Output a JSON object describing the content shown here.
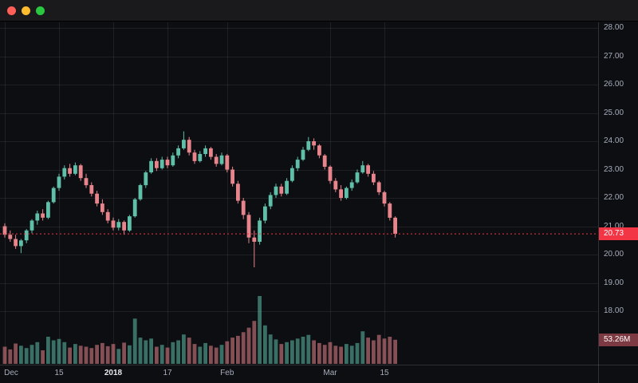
{
  "window": {
    "controls": [
      {
        "name": "close",
        "color": "#ff5f57"
      },
      {
        "name": "minimize",
        "color": "#febc2e"
      },
      {
        "name": "maximize",
        "color": "#2ac840"
      }
    ]
  },
  "chart_data": {
    "type": "candlestick",
    "title": "",
    "y_ticks": [
      "28.00",
      "27.00",
      "26.00",
      "25.00",
      "24.00",
      "23.00",
      "22.00",
      "21.00",
      "20.00",
      "19.00",
      "18.00"
    ],
    "y_axis_top_price": 28.0,
    "y_axis_bottom_price": 18.0,
    "x_ticks": [
      {
        "label": "Dec",
        "index": 0
      },
      {
        "label": "15",
        "index": 10
      },
      {
        "label": "2018",
        "index": 20,
        "emphasis": true
      },
      {
        "label": "17",
        "index": 30
      },
      {
        "label": "Feb",
        "index": 41
      },
      {
        "label": "Mar",
        "index": 60
      },
      {
        "label": "15",
        "index": 70
      }
    ],
    "candles": [
      [
        21.0,
        21.1,
        20.6,
        20.7
      ],
      [
        20.7,
        20.85,
        20.45,
        20.55
      ],
      [
        20.55,
        20.7,
        20.2,
        20.3
      ],
      [
        20.3,
        20.55,
        20.05,
        20.5
      ],
      [
        20.5,
        20.9,
        20.4,
        20.85
      ],
      [
        20.85,
        21.25,
        20.75,
        21.2
      ],
      [
        21.2,
        21.55,
        21.05,
        21.45
      ],
      [
        21.45,
        21.6,
        21.2,
        21.3
      ],
      [
        21.3,
        21.9,
        21.25,
        21.85
      ],
      [
        21.85,
        22.4,
        21.8,
        22.35
      ],
      [
        22.35,
        22.85,
        22.25,
        22.75
      ],
      [
        22.75,
        23.15,
        22.65,
        23.05
      ],
      [
        23.05,
        23.2,
        22.75,
        22.85
      ],
      [
        22.85,
        23.25,
        22.8,
        23.15
      ],
      [
        23.15,
        23.2,
        22.6,
        22.7
      ],
      [
        22.7,
        22.85,
        22.35,
        22.45
      ],
      [
        22.45,
        22.55,
        22.05,
        22.15
      ],
      [
        22.15,
        22.25,
        21.7,
        21.8
      ],
      [
        21.8,
        21.95,
        21.4,
        21.5
      ],
      [
        21.5,
        21.6,
        21.1,
        21.2
      ],
      [
        21.2,
        21.3,
        20.85,
        20.95
      ],
      [
        20.95,
        21.25,
        20.85,
        21.15
      ],
      [
        21.15,
        21.2,
        20.7,
        20.85
      ],
      [
        20.85,
        21.4,
        20.8,
        21.35
      ],
      [
        21.35,
        22.0,
        21.3,
        21.95
      ],
      [
        21.95,
        22.5,
        21.9,
        22.45
      ],
      [
        22.45,
        22.95,
        22.35,
        22.9
      ],
      [
        22.9,
        23.4,
        22.85,
        23.3
      ],
      [
        23.3,
        23.4,
        22.95,
        23.05
      ],
      [
        23.05,
        23.45,
        23.0,
        23.35
      ],
      [
        23.35,
        23.45,
        23.05,
        23.15
      ],
      [
        23.15,
        23.6,
        23.1,
        23.5
      ],
      [
        23.5,
        23.85,
        23.4,
        23.75
      ],
      [
        23.75,
        24.35,
        23.7,
        24.05
      ],
      [
        24.05,
        24.15,
        23.5,
        23.6
      ],
      [
        23.6,
        23.7,
        23.2,
        23.3
      ],
      [
        23.3,
        23.65,
        23.25,
        23.55
      ],
      [
        23.55,
        23.85,
        23.45,
        23.75
      ],
      [
        23.75,
        23.8,
        23.35,
        23.45
      ],
      [
        23.45,
        23.55,
        23.1,
        23.2
      ],
      [
        23.2,
        23.6,
        23.15,
        23.5
      ],
      [
        23.5,
        23.55,
        22.9,
        23.0
      ],
      [
        23.0,
        23.1,
        22.4,
        22.5
      ],
      [
        22.5,
        22.6,
        21.8,
        21.9
      ],
      [
        21.9,
        22.0,
        21.25,
        21.4
      ],
      [
        21.4,
        21.5,
        20.4,
        20.6
      ],
      [
        20.6,
        20.85,
        19.55,
        20.45
      ],
      [
        20.45,
        21.3,
        20.35,
        21.2
      ],
      [
        21.2,
        21.8,
        21.1,
        21.7
      ],
      [
        21.7,
        22.2,
        21.6,
        22.1
      ],
      [
        22.1,
        22.5,
        22.0,
        22.4
      ],
      [
        22.4,
        22.5,
        22.05,
        22.15
      ],
      [
        22.15,
        22.7,
        22.1,
        22.6
      ],
      [
        22.6,
        23.15,
        22.55,
        23.05
      ],
      [
        23.05,
        23.45,
        22.95,
        23.35
      ],
      [
        23.35,
        23.8,
        23.3,
        23.7
      ],
      [
        23.7,
        24.15,
        23.65,
        24.0
      ],
      [
        24.0,
        24.1,
        23.7,
        23.85
      ],
      [
        23.85,
        23.9,
        23.4,
        23.5
      ],
      [
        23.5,
        23.55,
        23.0,
        23.1
      ],
      [
        23.1,
        23.15,
        22.5,
        22.6
      ],
      [
        22.6,
        22.7,
        22.2,
        22.3
      ],
      [
        22.3,
        22.45,
        21.9,
        22.0
      ],
      [
        22.0,
        22.4,
        21.95,
        22.35
      ],
      [
        22.35,
        22.65,
        22.25,
        22.55
      ],
      [
        22.55,
        23.0,
        22.5,
        22.9
      ],
      [
        22.9,
        23.3,
        22.85,
        23.15
      ],
      [
        23.15,
        23.2,
        22.75,
        22.85
      ],
      [
        22.85,
        22.95,
        22.45,
        22.55
      ],
      [
        22.55,
        22.6,
        22.1,
        22.2
      ],
      [
        22.2,
        22.25,
        21.7,
        21.8
      ],
      [
        21.8,
        21.85,
        21.2,
        21.3
      ],
      [
        21.3,
        21.35,
        20.6,
        20.73
      ]
    ],
    "volumes_millions": [
      38,
      32,
      45,
      40,
      35,
      42,
      48,
      30,
      60,
      52,
      55,
      48,
      36,
      44,
      40,
      38,
      35,
      42,
      46,
      39,
      44,
      33,
      47,
      41,
      100,
      58,
      52,
      56,
      38,
      42,
      36,
      48,
      52,
      65,
      58,
      44,
      38,
      46,
      40,
      36,
      42,
      50,
      58,
      62,
      70,
      80,
      95,
      150,
      85,
      65,
      54,
      44,
      48,
      52,
      56,
      60,
      64,
      52,
      46,
      42,
      48,
      40,
      38,
      44,
      40,
      46,
      72,
      58,
      52,
      64,
      56,
      60,
      53.26
    ],
    "last_price": 20.73,
    "last_price_label": "20.73",
    "last_volume_label": "53.26M",
    "colors": {
      "background": "#0d0e12",
      "grid": "rgba(255,255,255,0.08)",
      "separator": "rgba(255,255,255,0.14)",
      "up": "#5fbfa9",
      "down": "#e8858c",
      "volume_up": "rgba(95,191,169,0.55)",
      "volume_down": "rgba(232,133,140,0.55)",
      "price_line": "#f23645",
      "price_badge_bg": "#f23645",
      "volume_badge_bg": "#7e3a42",
      "axis_text": "#a6adbb"
    }
  }
}
